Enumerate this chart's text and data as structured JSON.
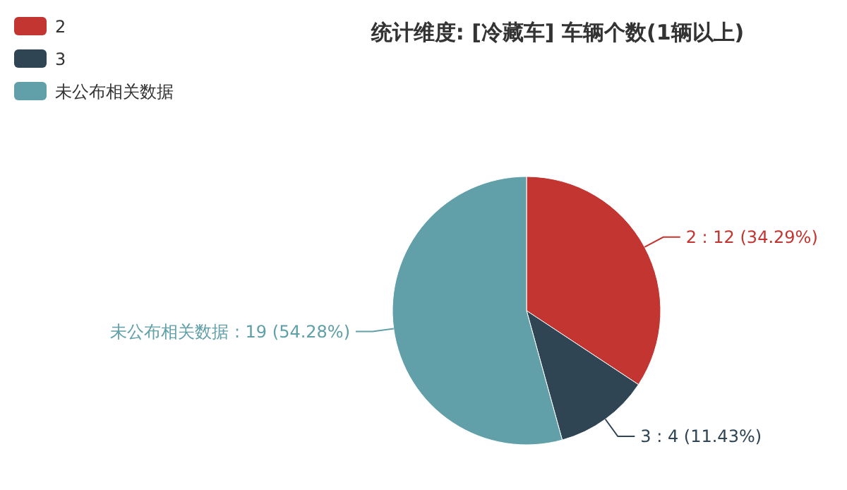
{
  "chart_data": {
    "type": "pie",
    "title": "统计维度: [冷藏车] 车辆个数(1辆以上)",
    "categories": [
      "2",
      "3",
      "未公布相关数据"
    ],
    "values": [
      12,
      4,
      19
    ],
    "colors": [
      "#c23531",
      "#2f4554",
      "#61a0a8"
    ],
    "value_labels": [
      "2 : 12 (34.29%)",
      "3 : 4 (11.43%)",
      "未公布相关数据 : 19 (54.28%)"
    ],
    "legend": "top left"
  }
}
